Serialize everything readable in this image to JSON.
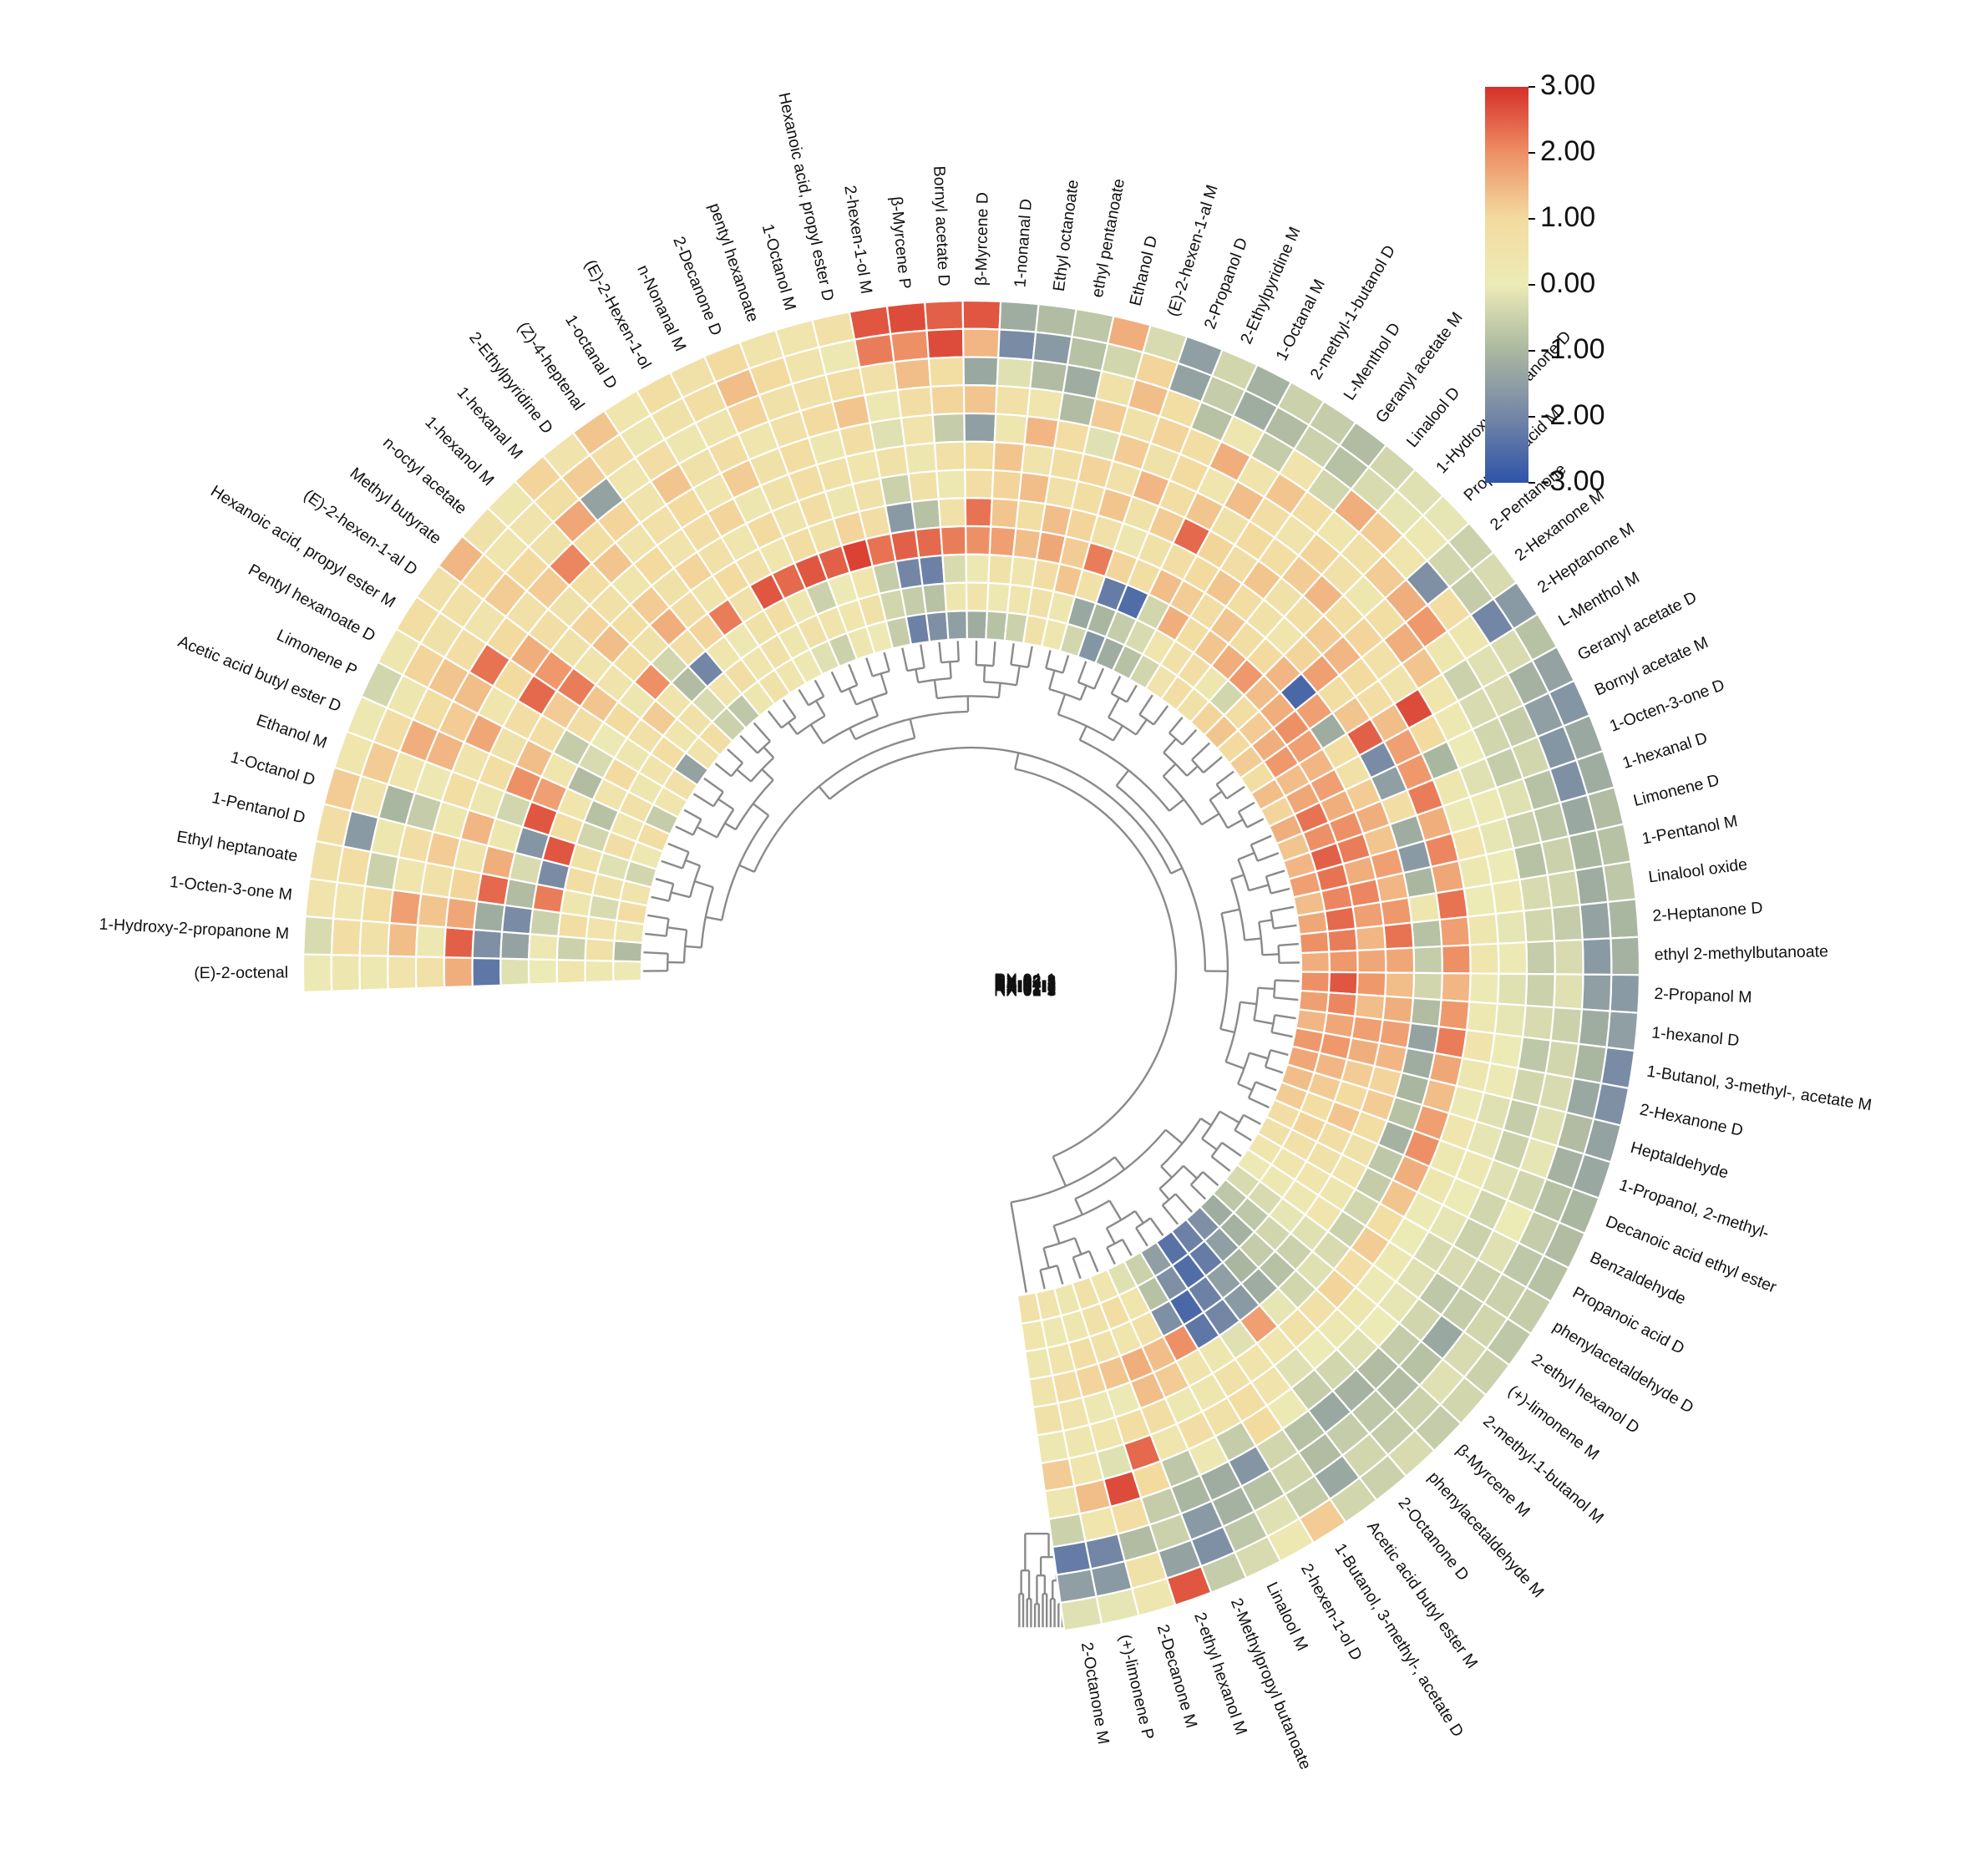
{
  "chart_data": {
    "type": "heatmap",
    "layout": "circular",
    "colorbar": {
      "min": -3.0,
      "max": 3.0,
      "ticks": [
        "3.00",
        "2.00",
        "1.00",
        "0.00",
        "-1.00",
        "-2.00",
        "-3.00"
      ],
      "colors": [
        "#d62f27",
        "#ee9066",
        "#f3dba0",
        "#ecebb6",
        "#aab7a0",
        "#7486a6",
        "#2e54a8"
      ]
    },
    "samples": [
      "RX-01-3",
      "RX-01-2",
      "RX-02-2",
      "RX-02-1",
      "RX-02-3",
      "RX-01-1",
      "RX-04-3",
      "RX-04-2",
      "RX-03-2",
      "RX-03-1",
      "RX-03-3",
      "RX-04-1"
    ],
    "compounds": [
      "(E)-2-octenal",
      "1-Hydroxy-2-propanone M",
      "1-Octen-3-one M",
      "Ethyl heptanoate",
      "1-Pentanol D",
      "1-Octanol D",
      "Ethanol M",
      "Acetic acid butyl ester D",
      "Limonene P",
      "Pentyl hexanoate D",
      "Hexanoic acid, propyl ester M",
      "(E)-2-hexen-1-al D",
      "Methyl butyrate",
      "n-octyl acetate",
      "1-hexanol M",
      "1-hexanal M",
      "2-Ethylpyridine D",
      "(Z)-4-heptenal",
      "1-octanal D",
      "(E)-2-Hexen-1-ol",
      "n-Nonanal M",
      "2-Decanone D",
      "pentyl hexanoate",
      "1-Octanol M",
      "Hexanoic acid, propyl ester D",
      "2-hexen-1-ol M",
      "β-Myrcene P",
      "Bornyl acetate D",
      "β-Myrcene D",
      "1-nonanal D",
      "Ethyl octanoate",
      "ethyl pentanoate",
      "Ethanol D",
      "(E)-2-hexen-1-al M",
      "2-Propanol D",
      "2-Ethylpyridine M",
      "1-Octanal M",
      "2-methyl-1-butanol D",
      "L-Menthol D",
      "Geranyl acetate M",
      "Linalool D",
      "1-Hydroxy-2-propanone D",
      "Propanoic acid M",
      "2-Pentanone",
      "2-Hexanone M",
      "2-Heptanone M",
      "L-Menthol M",
      "Geranyl acetate D",
      "Bornyl acetate M",
      "1-Octen-3-one D",
      "1-hexanal D",
      "Limonene D",
      "1-Pentanol M",
      "Linalool oxide",
      "2-Heptanone D",
      "ethyl 2-methylbutanoate",
      "2-Propanol M",
      "1-hexanol D",
      "1-Butanol, 3-methyl-, acetate M",
      "2-Hexanone D",
      "Heptaldehyde",
      "1-Propanol, 2-methyl-",
      "Decanoic acid ethyl ester",
      "Benzaldehyde",
      "Propanoic acid D",
      "phenylacetaldehyde D",
      "2-ethyl hexanol D",
      "(+)-limonene M",
      "2-methyl-1-butanol M",
      "β-Myrcene M",
      "phenylacetaldehyde M",
      "2-Octanone D",
      "Acetic acid butyl ester M",
      "1-Butanol, 3-methyl-, acetate D",
      "2-hexen-1-ol D",
      "Linalool M",
      "2-Methylpropyl butanoate",
      "2-ethyl hexanol M",
      "2-Decanone M",
      "(+)-limonene P",
      "2-Octanone M"
    ],
    "values": [
      [
        0.1,
        -0.3,
        0.5,
        0.6,
        0.8,
        1.2,
        0.4,
        0.2,
        -0.4,
        0.3,
        0.9,
        0.7,
        1.5,
        0.6,
        0.3,
        1.1,
        0.5,
        1.3,
        0.4,
        0.9,
        0.6,
        1.0,
        0.5,
        0.4,
        0.7,
        2.6,
        2.7,
        2.5,
        2.6,
        -1.2,
        -0.9,
        -0.7,
        1.6,
        -0.3,
        -1.5,
        -0.4,
        -1.1,
        -0.5,
        -0.6,
        -0.9,
        -0.4,
        -0.2,
        -0.1,
        -0.5,
        -0.3,
        -1.6,
        -0.8,
        -1.4,
        -1.7,
        -1.3,
        -1.2,
        -0.9,
        -0.8,
        -0.7,
        -1.0,
        -1.1,
        -1.6,
        -1.5,
        -1.9,
        -1.8,
        -1.4,
        -1.3,
        -1.0,
        -0.9,
        -0.8,
        -0.6,
        -0.7,
        -0.5,
        -0.4,
        -0.6,
        -0.3,
        -0.5,
        -0.4,
        1.2,
        0.2,
        -0.3,
        -0.6,
        2.6,
        0.3,
        -0.1,
        -0.2
      ],
      [
        0.3,
        0.8,
        0.4,
        0.9,
        -1.6,
        0.5,
        1.2,
        0.8,
        0.3,
        1.1,
        0.6,
        0.7,
        1.0,
        0.4,
        0.5,
        0.9,
        1.2,
        0.8,
        0.3,
        0.6,
        0.9,
        1.4,
        1.0,
        0.5,
        0.2,
        2.2,
        2.0,
        2.7,
        1.5,
        -1.9,
        -1.6,
        -0.8,
        -0.4,
        1.1,
        -1.4,
        -0.6,
        -1.2,
        -0.9,
        -0.5,
        -0.8,
        -0.3,
        -0.1,
        0.2,
        -0.4,
        -0.6,
        -2.0,
        -0.3,
        -1.1,
        -1.5,
        -1.7,
        -1.8,
        -1.3,
        -1.0,
        -1.2,
        -1.4,
        -1.6,
        -1.5,
        -1.2,
        -1.0,
        -1.3,
        -0.9,
        -1.1,
        -0.8,
        -0.6,
        -0.7,
        -0.5,
        -0.4,
        -0.3,
        -0.2,
        -0.5,
        -0.6,
        -0.4,
        -1.3,
        -0.6,
        -0.2,
        -0.7,
        -1.8,
        -1.4,
        0.6,
        -1.6,
        -1.5
      ],
      [
        0.2,
        0.6,
        0.9,
        -0.5,
        0.3,
        -1.0,
        0.4,
        1.6,
        0.9,
        1.3,
        0.8,
        0.5,
        1.2,
        1.0,
        0.6,
        1.7,
        -1.4,
        0.4,
        0.8,
        0.3,
        0.5,
        1.1,
        0.6,
        0.7,
        0.9,
        0.7,
        1.4,
        0.9,
        -1.3,
        -0.2,
        -0.9,
        -1.2,
        0.6,
        1.4,
        0.9,
        -0.8,
        0.3,
        -0.6,
        0.5,
        -0.4,
        1.6,
        1.2,
        0.4,
        -1.8,
        0.8,
        0.3,
        -0.2,
        -0.3,
        -0.6,
        -0.4,
        -0.8,
        -0.7,
        -0.5,
        -0.4,
        -0.6,
        -0.3,
        -0.2,
        -0.5,
        -0.4,
        -0.3,
        -0.2,
        -0.1,
        -0.4,
        0.0,
        -0.2,
        -0.5,
        -0.6,
        -1.3,
        -0.8,
        -0.9,
        -0.7,
        -0.6,
        -0.9,
        -0.4,
        -0.8,
        -1.1,
        -1.6,
        -0.5,
        -0.9,
        -2.0,
        -2.2
      ],
      [
        0.5,
        1.4,
        1.8,
        0.4,
        0.8,
        -0.6,
        0.2,
        1.5,
        1.2,
        1.4,
        2.3,
        1.0,
        0.7,
        1.2,
        2.1,
        0.9,
        1.1,
        0.5,
        1.3,
        0.6,
        0.8,
        0.4,
        0.7,
        1.0,
        1.3,
        0.2,
        0.8,
        1.1,
        1.3,
        0.7,
        0.4,
        -0.9,
        1.2,
        0.6,
        1.1,
        0.8,
        1.6,
        0.5,
        1.3,
        0.9,
        0.4,
        0.7,
        1.2,
        1.6,
        1.9,
        0.3,
        -0.5,
        -0.3,
        -0.4,
        -0.6,
        -0.2,
        -0.5,
        -0.8,
        -0.3,
        -0.4,
        -0.6,
        -0.5,
        -0.3,
        -0.7,
        -0.4,
        -0.6,
        -0.5,
        -0.2,
        -0.4,
        -0.5,
        -0.3,
        -0.7,
        -0.4,
        -0.6,
        -0.9,
        -1.1,
        -1.3,
        -0.8,
        -0.4,
        -1.7,
        -1.2,
        -1.0,
        -0.6,
        0.8,
        0.4,
        -0.5
      ],
      [
        0.7,
        0.2,
        1.3,
        0.6,
        1.2,
        0.3,
        0.9,
        0.5,
        1.7,
        0.4,
        1.0,
        1.6,
        0.8,
        0.6,
        0.9,
        1.3,
        0.5,
        0.7,
        1.0,
        0.4,
        1.2,
        0.6,
        0.9,
        0.3,
        0.8,
        -0.2,
        0.5,
        -0.6,
        -1.5,
        0.3,
        1.5,
        0.9,
        -0.2,
        1.2,
        0.6,
        1.0,
        0.4,
        1.4,
        0.8,
        0.5,
        1.1,
        0.7,
        0.3,
        0.9,
        1.6,
        1.3,
        0.4,
        0.2,
        0.0,
        -0.2,
        0.1,
        -0.1,
        0.0,
        0.2,
        -0.1,
        0.1,
        -0.2,
        -0.1,
        0.0,
        0.1,
        -0.2,
        -0.1,
        0.2,
        0.0,
        -0.1,
        -0.3,
        -0.2,
        -0.1,
        0.0,
        -0.2,
        -0.4,
        -0.6,
        0.1,
        1.0,
        -0.6,
        0.2,
        -0.7,
        1.0,
        2.7,
        1.4,
        0.3
      ],
      [
        1.6,
        2.5,
        1.7,
        1.1,
        0.5,
        1.5,
        0.3,
        0.9,
        0.6,
        0.8,
        2.4,
        1.9,
        0.6,
        1.1,
        0.7,
        0.4,
        1.0,
        0.5,
        0.8,
        1.1,
        0.3,
        0.6,
        0.9,
        0.7,
        0.4,
        0.6,
        0.3,
        0.7,
        0.9,
        1.3,
        0.5,
        0.9,
        1.1,
        0.7,
        1.5,
        0.9,
        1.3,
        0.6,
        1.0,
        0.8,
        1.2,
        1.5,
        0.9,
        1.1,
        0.7,
        0.5,
        2.7,
        1.0,
        -1.0,
        0.3,
        0.1,
        0.5,
        0.2,
        0.0,
        0.3,
        0.4,
        0.1,
        0.2,
        0.5,
        0.3,
        0.1,
        0.4,
        0.2,
        0.3,
        0.1,
        0.0,
        0.2,
        0.1,
        0.3,
        0.2,
        0.0,
        -0.2,
        0.5,
        0.9,
        0.6,
        0.8,
        0.4,
        2.4,
        -0.2,
        0.4,
        1.2
      ],
      [
        -2.3,
        -1.8,
        -1.2,
        2.4,
        1.6,
        0.3,
        -0.4,
        2.0,
        1.4,
        0.8,
        1.2,
        2.2,
        0.5,
        1.4,
        0.9,
        1.2,
        0.6,
        1.1,
        0.7,
        0.4,
        1.0,
        0.5,
        0.8,
        0.3,
        0.6,
        -0.5,
        0.6,
        0.2,
        0.8,
        1.1,
        1.4,
        0.7,
        0.9,
        1.3,
        0.6,
        1.2,
        2.4,
        1.1,
        0.8,
        1.3,
        0.6,
        0.9,
        1.2,
        1.5,
        1.0,
        0.8,
        1.4,
        1.8,
        1.9,
        2.2,
        1.6,
        2.1,
        1.7,
        2.3,
        1.8,
        2.0,
        1.5,
        1.9,
        2.2,
        1.7,
        1.4,
        1.8,
        2.0,
        1.6,
        1.3,
        0.9,
        1.2,
        0.8,
        1.1,
        0.7,
        0.6,
        0.4,
        0.5,
        0.6,
        0.3,
        0.2,
        0.8,
        0.9,
        0.4,
        0.3,
        0.2
      ],
      [
        -0.2,
        -1.4,
        -1.9,
        -0.9,
        -0.3,
        -1.7,
        2.6,
        1.8,
        0.4,
        -0.6,
        0.8,
        1.3,
        0.5,
        0.9,
        0.6,
        1.6,
        0.8,
        0.5,
        1.0,
        0.7,
        0.4,
        0.9,
        0.6,
        1.1,
        0.8,
        -1.6,
        -0.8,
        0.6,
        2.3,
        1.3,
        0.9,
        1.4,
        1.1,
        0.7,
        0.3,
        0.6,
        0.8,
        1.0,
        1.3,
        0.9,
        0.6,
        0.4,
        1.1,
        1.8,
        0.9,
        1.3,
        2.5,
        -1.9,
        -1.5,
        0.8,
        -1.2,
        -1.6,
        -1.0,
        0.3,
        -0.8,
        -0.6,
        -0.4,
        -0.9,
        -1.4,
        -1.2,
        -1.0,
        -0.8,
        -1.1,
        -0.7,
        -0.6,
        -0.4,
        -0.5,
        -0.3,
        -0.2,
        -0.4,
        -0.1,
        1.8,
        -0.2,
        0.3,
        0.5,
        1.2,
        1.4,
        0.1,
        0.2,
        0.5,
        0.6
      ],
      [
        0.0,
        0.2,
        -0.5,
        2.2,
        -1.9,
        2.6,
        0.9,
        0.4,
        -0.9,
        -0.3,
        0.1,
        1.0,
        0.3,
        2.0,
        -0.4,
        0.8,
        1.1,
        2.2,
        0.7,
        2.6,
        2.4,
        2.6,
        2.5,
        2.8,
        2.3,
        2.5,
        2.4,
        2.2,
        2.0,
        1.8,
        1.4,
        1.7,
        1.2,
        2.2,
        1.1,
        0.9,
        1.4,
        1.2,
        0.9,
        1.3,
        0.8,
        1.0,
        1.5,
        -2.6,
        1.8,
        -1.2,
        0.9,
        0.7,
        1.2,
        1.6,
        1.3,
        1.8,
        1.5,
        1.9,
        2.3,
        1.7,
        1.4,
        1.6,
        1.8,
        1.5,
        1.1,
        1.2,
        0.9,
        0.6,
        0.5,
        0.3,
        0.4,
        -0.2,
        -0.5,
        -0.8,
        -1.2,
        -1.6,
        -2.0,
        -2.3,
        2.0,
        1.4,
        1.6,
        1.3,
        1.1,
        0.8,
        0.5
      ],
      [
        0.4,
        -0.5,
        0.9,
        0.3,
        0.8,
        0.6,
        -0.4,
        -0.8,
        0.5,
        1.0,
        0.3,
        0.7,
        1.2,
        0.5,
        -0.9,
        -2.0,
        0.4,
        0.2,
        0.6,
        0.8,
        0.3,
        -0.5,
        0.1,
        0.4,
        -0.6,
        -2.0,
        -2.1,
        -0.3,
        0.2,
        0.6,
        0.4,
        0.8,
        1.3,
        0.7,
        -2.2,
        -2.5,
        -0.4,
        1.6,
        0.9,
        1.3,
        1.6,
        1.9,
        1.4,
        1.6,
        2.0,
        1.8,
        1.5,
        1.8,
        1.6,
        2.0,
        2.2,
        1.6,
        2.1,
        1.8,
        1.5,
        1.7,
        1.9,
        1.4,
        1.8,
        1.6,
        1.2,
        1.0,
        1.3,
        0.8,
        0.6,
        0.4,
        0.2,
        -0.1,
        -0.4,
        -0.6,
        -1.0,
        -1.5,
        -2.1,
        -2.6,
        -1.8,
        0.7,
        0.4,
        0.6,
        0.8,
        0.5,
        0.3
      ],
      [
        0.2,
        0.7,
        0.5,
        -0.3,
        0.6,
        -0.2,
        0.8,
        0.4,
        0.7,
        0.3,
        0.5,
        0.9,
        0.4,
        0.6,
        -0.3,
        0.5,
        0.8,
        0.4,
        0.6,
        0.3,
        0.7,
        0.5,
        0.4,
        0.6,
        -0.4,
        -0.6,
        -0.8,
        0.3,
        0.5,
        0.2,
        0.4,
        0.6,
        0.3,
        -1.3,
        -1.0,
        -0.6,
        -0.3,
        0.4,
        0.6,
        0.8,
        0.3,
        -0.4,
        0.9,
        1.2,
        1.6,
        1.9,
        1.4,
        1.7,
        2.3,
        2.0,
        2.5,
        2.3,
        2.1,
        2.4,
        2.2,
        1.9,
        2.6,
        2.1,
        1.7,
        1.9,
        1.5,
        1.2,
        0.9,
        1.1,
        0.7,
        0.4,
        0.2,
        -0.3,
        -0.7,
        -1.1,
        -1.5,
        -2.2,
        -2.5,
        -1.8,
        -0.8,
        0.4,
        0.9,
        0.6,
        0.3,
        0.2,
        0.4
      ],
      [
        0.1,
        -0.9,
        0.3,
        0.8,
        0.5,
        -0.4,
        0.2,
        0.9,
        -0.6,
        0.4,
        0.7,
        -1.4,
        0.5,
        0.8,
        -0.5,
        -0.7,
        0.3,
        0.6,
        0.4,
        0.2,
        -0.2,
        -0.5,
        0.3,
        0.1,
        -0.6,
        -2.1,
        -1.8,
        -1.5,
        -1.2,
        -0.8,
        -0.5,
        0.6,
        0.3,
        -0.4,
        -1.7,
        -1.2,
        -0.8,
        -0.4,
        0.5,
        0.8,
        0.6,
        1.1,
        1.3,
        1.0,
        1.2,
        0.9,
        1.4,
        1.1,
        1.6,
        1.3,
        1.5,
        1.8,
        1.4,
        1.7,
        2.0,
        1.6,
        2.0,
        1.8,
        1.5,
        1.9,
        1.7,
        1.4,
        1.2,
        0.8,
        0.6,
        0.4,
        0.1,
        -0.3,
        -0.7,
        -1.2,
        -1.8,
        -2.1,
        -2.4,
        -1.5,
        -0.5,
        -0.2,
        0.4,
        0.6,
        0.3,
        0.5,
        0.7
      ]
    ]
  }
}
